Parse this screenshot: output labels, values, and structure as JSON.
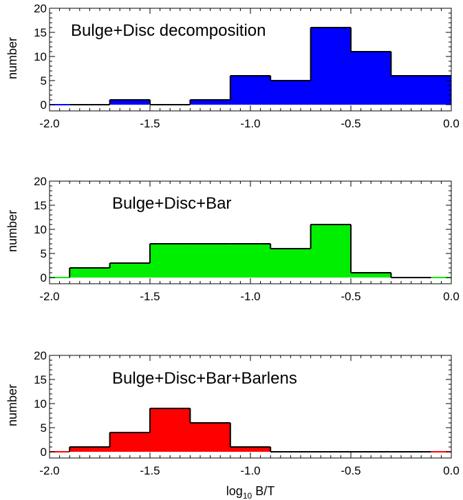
{
  "chart_data": [
    {
      "type": "bar",
      "title": "Bulge+Disc decomposition",
      "ylabel": "number",
      "xlabel": "",
      "xlim": [
        -2.0,
        0.0
      ],
      "ylim": [
        0,
        20
      ],
      "xticks": [
        -2.0,
        -1.5,
        -1.0,
        -0.5,
        0.0
      ],
      "xtick_labels": [
        "-2.0",
        "-1.5",
        "-1.0",
        "-0.5",
        "0.0"
      ],
      "yticks": [
        0,
        5,
        10,
        15,
        20
      ],
      "ytick_labels": [
        "0",
        "5",
        "10",
        "15",
        "20"
      ],
      "bin_width": 0.2,
      "bin_starts": [
        -2.1,
        -1.9,
        -1.7,
        -1.5,
        -1.3,
        -1.1,
        -0.9,
        -0.7,
        -0.5,
        -0.3,
        -0.1
      ],
      "values": [
        0,
        0,
        1,
        0,
        1,
        6,
        5,
        16,
        11,
        6,
        6
      ],
      "color": "#0000ff"
    },
    {
      "type": "bar",
      "title": "Bulge+Disc+Bar",
      "ylabel": "number",
      "xlabel": "",
      "xlim": [
        -2.0,
        0.0
      ],
      "ylim": [
        0,
        20
      ],
      "xticks": [
        -2.0,
        -1.5,
        -1.0,
        -0.5,
        0.0
      ],
      "xtick_labels": [
        "-2.0",
        "-1.5",
        "-1.0",
        "-0.5",
        "0.0"
      ],
      "yticks": [
        0,
        5,
        10,
        15,
        20
      ],
      "ytick_labels": [
        "0",
        "5",
        "10",
        "15",
        "20"
      ],
      "bin_width": 0.2,
      "bin_starts": [
        -2.1,
        -1.9,
        -1.7,
        -1.5,
        -1.3,
        -1.1,
        -0.9,
        -0.7,
        -0.5,
        -0.3,
        -0.1
      ],
      "values": [
        0,
        2,
        3,
        7,
        7,
        7,
        6,
        11,
        1,
        0,
        0
      ],
      "color": "#00ee00"
    },
    {
      "type": "bar",
      "title": "Bulge+Disc+Bar+Barlens",
      "ylabel": "number",
      "xlabel": "log10 B/T",
      "xlabel_main": "log",
      "xlabel_sub": "10",
      "xlabel_rest": " B/T",
      "xlim": [
        -2.0,
        0.0
      ],
      "ylim": [
        0,
        20
      ],
      "xticks": [
        -2.0,
        -1.5,
        -1.0,
        -0.5,
        0.0
      ],
      "xtick_labels": [
        "-2.0",
        "-1.5",
        "-1.0",
        "-0.5",
        "0.0"
      ],
      "yticks": [
        0,
        5,
        10,
        15,
        20
      ],
      "ytick_labels": [
        "0",
        "5",
        "10",
        "15",
        "20"
      ],
      "bin_width": 0.2,
      "bin_starts": [
        -2.1,
        -1.9,
        -1.7,
        -1.5,
        -1.3,
        -1.1,
        -0.9,
        -0.7,
        -0.5,
        -0.3,
        -0.1
      ],
      "values": [
        0,
        1,
        4,
        9,
        6,
        1,
        0,
        0,
        0,
        0,
        0
      ],
      "color": "#ff0000"
    }
  ]
}
